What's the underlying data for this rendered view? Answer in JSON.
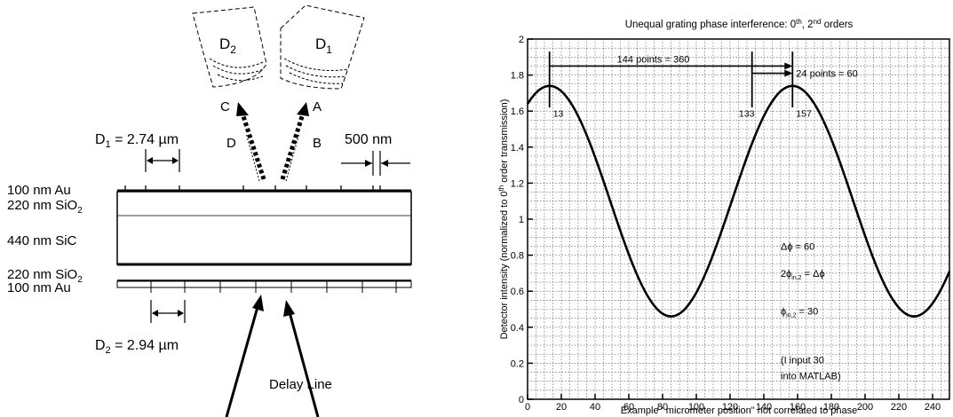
{
  "diagram": {
    "detectors": [
      {
        "label": "D",
        "sub": "2"
      },
      {
        "label": "D",
        "sub": "1"
      }
    ],
    "beam_labels": [
      "C",
      "A",
      "D",
      "B"
    ],
    "period_top": {
      "label": "D",
      "sub": "1",
      "value": " = 2.74 µm"
    },
    "period_bottom": {
      "label": "D",
      "sub": "2",
      "value": " = 2.94 µm"
    },
    "slit_width": "500 nm",
    "layers": [
      {
        "text": "100 nm Au"
      },
      {
        "text": "220 nm SiO",
        "sub": "2"
      },
      {
        "text": "440 nm SiC"
      },
      {
        "text": "220 nm SiO",
        "sub": "2"
      },
      {
        "text": "100 nm Au"
      }
    ],
    "delay_line": "Delay Line"
  },
  "chart_data": {
    "type": "line",
    "title_parts": [
      {
        "text": "Unequal grating phase interference: 0"
      },
      {
        "text": "th",
        "sup": true
      },
      {
        "text": ", 2"
      },
      {
        "text": "nd",
        "sup": true
      },
      {
        "text": " orders"
      }
    ],
    "ylabel_parts": [
      {
        "text": "Detector intensity (normalized to 0"
      },
      {
        "text": "th",
        "sup": true
      },
      {
        "text": " order transmission)"
      }
    ],
    "xlabel": "Example ' micrometer position\" not correlated to phase",
    "xlim": [
      0,
      250
    ],
    "ylim": [
      0,
      2
    ],
    "xticks": [
      0,
      20,
      40,
      60,
      80,
      100,
      120,
      140,
      160,
      180,
      200,
      220,
      240
    ],
    "yticks": [
      0,
      0.2,
      0.4,
      0.6,
      0.8,
      1,
      1.2,
      1.4,
      1.6,
      1.8,
      2
    ],
    "ytick_labels": [
      "0",
      "0.2",
      "0.4",
      "0.6",
      "0.8",
      "1",
      "1.2",
      "1.4",
      "1.6",
      "1.8",
      "2"
    ],
    "grid": true,
    "series": [
      {
        "x_start": 0,
        "x_end": 250,
        "period": 144,
        "peak_x": 13,
        "mean": 1.1,
        "amplitude": 0.64
      },
      {
        "x_start": 0,
        "x_end": 250,
        "period": 144,
        "peak_x": 157,
        "mean": 1.1,
        "amplitude": 0.64
      }
    ],
    "annotations": {
      "span_long": {
        "text": "144 points = 360",
        "x1": 13,
        "x2": 157,
        "y": 1.85
      },
      "span_short": {
        "text": "24 points = 60",
        "x1": 133,
        "x2": 157,
        "y": 1.81
      },
      "peak_markers": [
        {
          "x": 13,
          "label": "13"
        },
        {
          "x": 133,
          "label": "133"
        },
        {
          "x": 157,
          "label": "157"
        }
      ],
      "notes": [
        {
          "x": 150,
          "y": 0.83,
          "text": "Δϕ = 60"
        },
        {
          "x": 150,
          "y": 0.68,
          "text": "2ϕ",
          "sub": "in,2",
          "after": " = Δϕ"
        },
        {
          "x": 150,
          "y": 0.47,
          "text": "ϕ",
          "sub": "in,2",
          "after": " = 30"
        },
        {
          "x": 150,
          "y": 0.2,
          "text": "(I input 30"
        },
        {
          "x": 150,
          "y": 0.11,
          "text": "into MATLAB)"
        }
      ]
    }
  }
}
